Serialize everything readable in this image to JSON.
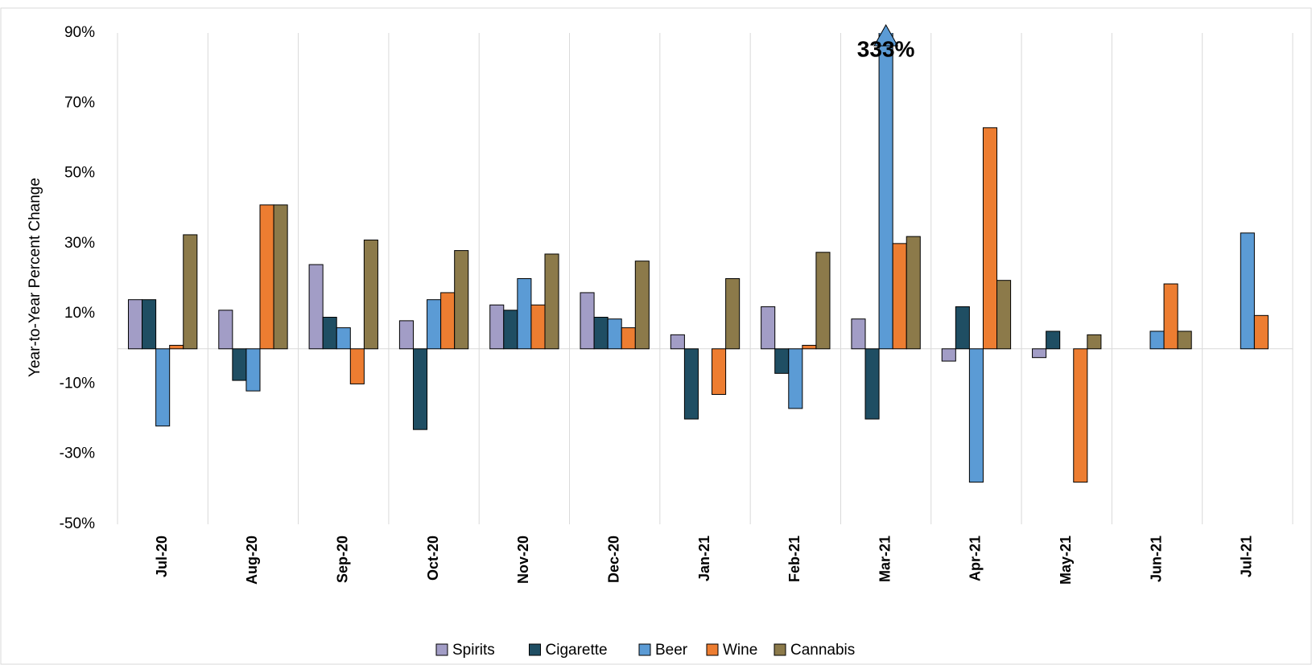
{
  "chart_data": {
    "type": "bar",
    "y_label": "Year-to-Year Percent Change",
    "categories": [
      "Jul-20",
      "Aug-20",
      "Sep-20",
      "Oct-20",
      "Nov-20",
      "Dec-20",
      "Jan-21",
      "Feb-21",
      "Mar-21",
      "Apr-21",
      "May-21",
      "Jun-21",
      "Jul-21"
    ],
    "series": [
      {
        "name": "Spirits",
        "color": "#a29dc6",
        "values": [
          14,
          11,
          24,
          8,
          12.5,
          16,
          4,
          12,
          8.5,
          -3.5,
          -2.5,
          null,
          null
        ]
      },
      {
        "name": "Cigarette",
        "color": "#1f4e63",
        "values": [
          14,
          -9,
          9,
          -23,
          11,
          9,
          -20,
          -7,
          -20,
          12,
          5,
          null,
          null
        ]
      },
      {
        "name": "Beer",
        "color": "#5b9bd5",
        "values": [
          -22,
          -12,
          6,
          14,
          20,
          8.5,
          null,
          -17,
          333,
          -38,
          null,
          5,
          33
        ],
        "value_labels": [
          null,
          null,
          null,
          null,
          null,
          null,
          null,
          null,
          "333%",
          null,
          null,
          null,
          null
        ]
      },
      {
        "name": "Wine",
        "color": "#ed7d31",
        "values": [
          1,
          41,
          -10,
          16,
          12.5,
          6,
          -13,
          1,
          30,
          63,
          -38,
          18.5,
          9.5
        ]
      },
      {
        "name": "Cannabis",
        "color": "#8c7a4a",
        "values": [
          32.5,
          41,
          31,
          28,
          27,
          25,
          20,
          27.5,
          32,
          19.5,
          4,
          5,
          null
        ]
      }
    ],
    "ylim": [
      -50,
      90
    ],
    "yticks": [
      {
        "value": -50,
        "label": "-50%"
      },
      {
        "value": -30,
        "label": "-30%"
      },
      {
        "value": -10,
        "label": "-10%"
      },
      {
        "value": 10,
        "label": "10%"
      },
      {
        "value": 30,
        "label": "30%"
      },
      {
        "value": 50,
        "label": "50%"
      },
      {
        "value": 70,
        "label": "70%"
      },
      {
        "value": 90,
        "label": "90%"
      }
    ],
    "grid": "x",
    "legend": "bottom"
  }
}
